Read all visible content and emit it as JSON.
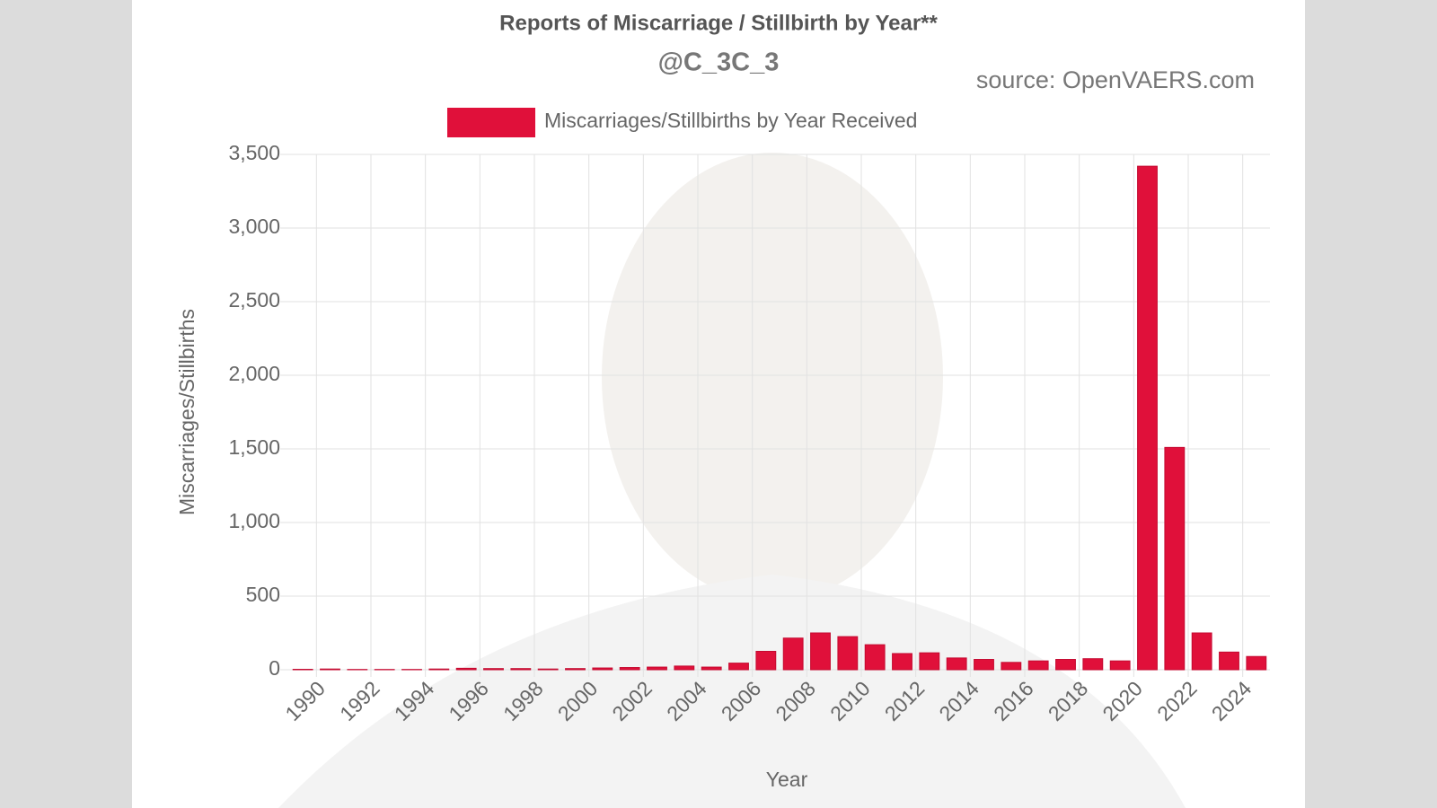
{
  "chart_data": {
    "type": "bar",
    "title": "Reports of Miscarriage / Stillbirth by Year**",
    "subtitle": "@C_3C_3",
    "source": "source: OpenVAERS.com",
    "x_label": "Year",
    "y_label": "Miscarriages/Stillbirths",
    "categories": [
      "1990",
      null,
      "1992",
      null,
      "1994",
      null,
      "1996",
      null,
      "1998",
      null,
      "2000",
      null,
      "2002",
      null,
      "2004",
      null,
      "2006",
      null,
      "2008",
      null,
      "2010",
      null,
      "2012",
      null,
      "2014",
      null,
      "2016",
      null,
      "2018",
      null,
      "2020",
      null,
      "2022",
      null,
      "2024",
      null
    ],
    "series": [
      {
        "name": "Miscarriages/Stillbirths by Year Received",
        "color": "#e0103a",
        "values": [
          3,
          5,
          2,
          2,
          2,
          5,
          10,
          8,
          8,
          5,
          8,
          12,
          15,
          18,
          25,
          18,
          45,
          125,
          215,
          250,
          225,
          170,
          110,
          115,
          80,
          70,
          50,
          60,
          70,
          75,
          60,
          3420,
          1510,
          250,
          120,
          90
        ]
      }
    ],
    "ylim": [
      0,
      3500
    ],
    "yticks": [
      0,
      500,
      {
        "value": 1000,
        "label": "1,000"
      },
      {
        "value": 1500,
        "label": "1,500"
      },
      {
        "value": 2000,
        "label": "2,000"
      },
      {
        "value": 2500,
        "label": "2,500"
      },
      {
        "value": 3000,
        "label": "3,000"
      },
      {
        "value": 3500,
        "label": "3,500"
      }
    ],
    "grid": true
  }
}
